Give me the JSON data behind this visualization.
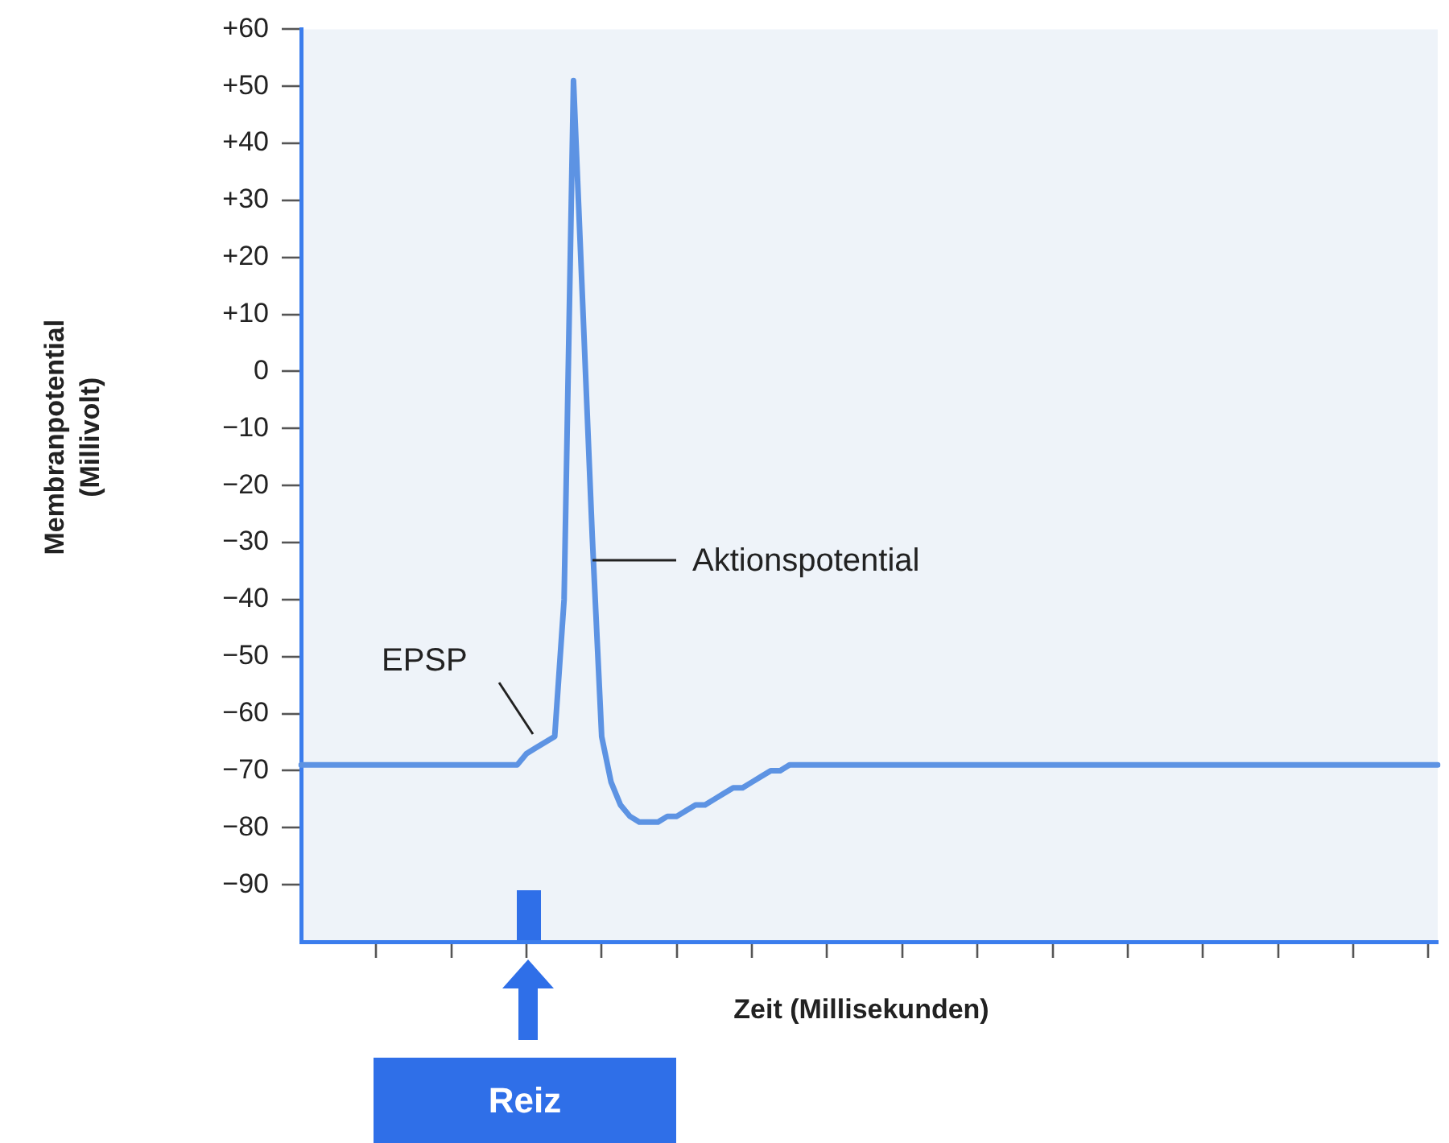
{
  "chart_data": {
    "type": "line",
    "xlabel": "Zeit (Millisekunden)",
    "ylabel": "Membranpotential (Millivolt)",
    "categories": [
      null,
      null,
      null,
      null,
      null,
      null,
      null,
      null,
      null,
      null,
      null,
      null,
      null,
      null,
      null,
      null,
      null,
      null,
      null,
      null,
      null,
      null,
      null,
      null,
      null,
      null,
      null,
      null,
      null,
      null,
      null,
      null,
      null,
      null,
      null,
      null,
      null,
      null,
      null,
      null,
      null,
      null,
      null,
      null,
      null,
      null,
      null,
      null,
      null,
      null,
      null,
      null,
      null,
      null,
      null,
      null,
      null,
      null,
      null,
      null,
      null,
      null,
      null,
      null,
      null,
      null,
      null,
      null,
      null,
      null,
      null,
      null,
      null,
      null,
      null,
      null,
      null,
      null,
      null,
      null,
      null,
      null,
      null,
      null,
      null,
      null,
      null,
      null,
      null,
      null,
      null,
      null,
      null,
      null,
      null,
      null,
      null,
      null,
      null,
      null,
      null,
      null,
      null,
      null,
      null,
      null,
      null,
      null,
      null,
      null,
      null,
      null,
      null,
      null,
      null,
      null,
      null,
      null,
      null,
      null,
      null,
      null
    ],
    "series": [
      {
        "color": "#5d93e3",
        "values": [
          -69,
          -69,
          -69,
          -69,
          -69,
          -69,
          -69,
          -69,
          -69,
          -69,
          -69,
          -69,
          -69,
          -69,
          -69,
          -69,
          -69,
          -69,
          -69,
          -69,
          -69,
          -69,
          -69,
          -69,
          -67,
          -66,
          -65,
          -64,
          -40,
          51,
          11,
          -29,
          -64,
          -72,
          -76,
          -78,
          -79,
          -79,
          -79,
          -78,
          -78,
          -77,
          -76,
          -76,
          -75,
          -74,
          -73,
          -73,
          -72,
          -71,
          -70,
          -70,
          -69,
          -69,
          -69,
          -69,
          -69,
          -69,
          -69,
          -69,
          -69,
          -69,
          -69,
          -69,
          -69,
          -69,
          -69,
          -69,
          -69,
          -69,
          -69,
          -69,
          -69,
          -69,
          -69,
          -69,
          -69,
          -69,
          -69,
          -69,
          -69,
          -69,
          -69,
          -69,
          -69,
          -69,
          -69,
          -69,
          -69,
          -69,
          -69,
          -69,
          -69,
          -69,
          -69,
          -69,
          -69,
          -69,
          -69,
          -69,
          -69,
          -69,
          -69,
          -69,
          -69,
          -69,
          -69,
          -69,
          -69,
          -69,
          -69,
          -69,
          -69,
          -69,
          -69,
          -69,
          -69,
          -69,
          -69,
          -69,
          -69,
          -69
        ]
      }
    ],
    "ylim": [
      -100,
      60
    ],
    "yticks": [
      {
        "value": 60,
        "label": "+60"
      },
      {
        "value": 50,
        "label": "+50"
      },
      {
        "value": 40,
        "label": "+40"
      },
      {
        "value": 30,
        "label": "+30"
      },
      {
        "value": 20,
        "label": "+20"
      },
      {
        "value": 10,
        "label": "+10"
      },
      0,
      {
        "value": -10,
        "label": "−10"
      },
      {
        "value": -20,
        "label": "−20"
      },
      {
        "value": -30,
        "label": "−30"
      },
      {
        "value": -40,
        "label": "−40"
      },
      {
        "value": -50,
        "label": "−50"
      },
      {
        "value": -60,
        "label": "−60"
      },
      {
        "value": -70,
        "label": "−70"
      },
      {
        "value": -80,
        "label": "−80"
      },
      {
        "value": -90,
        "label": "−90"
      }
    ],
    "annotations": [
      "EPSP",
      "Aktionspotential",
      "Reiz"
    ],
    "tick_labels": "y",
    "grid": false,
    "marker": "none",
    "line_style": "solid"
  }
}
